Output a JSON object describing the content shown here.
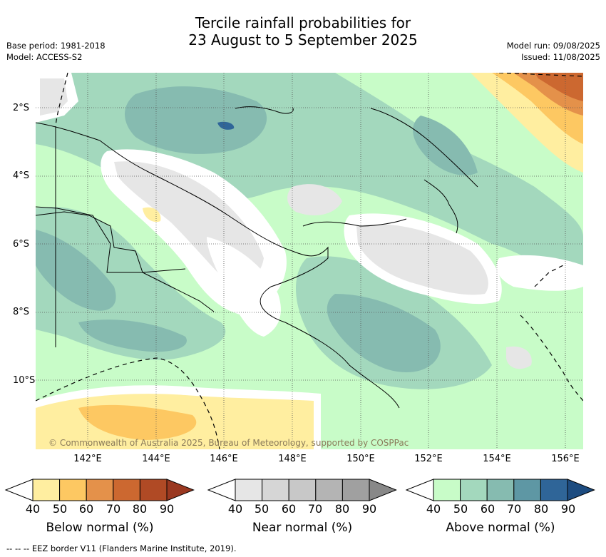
{
  "title_line1": "Tercile rainfall probabilities for",
  "title_line2": "23 August to 5 September 2025",
  "base_period": "Base period: 1981-2018",
  "model": "Model: ACCESS-S2",
  "model_run": "Model run: 09/08/2025",
  "issued": "Issued: 11/08/2025",
  "copyright": "© Commonwealth of Australia 2025, Bureau of Meteorology, supported by COSPPac",
  "footer": "--  --  -- EEZ border V11 (Flanders Marine Institute, 2019).",
  "lon_labels": [
    "142°E",
    "144°E",
    "146°E",
    "148°E",
    "150°E",
    "152°E",
    "154°E",
    "156°E"
  ],
  "lat_labels": [
    "2°S",
    "4°S",
    "6°S",
    "8°S",
    "10°S"
  ],
  "legends": [
    {
      "label": "Below normal (%)",
      "ticks": [
        "40",
        "50",
        "60",
        "70",
        "80",
        "90"
      ],
      "colors": [
        "#ffeea0",
        "#fdc862",
        "#e4914a",
        "#cc6830",
        "#b04a25",
        "#9a3820"
      ]
    },
    {
      "label": "Near normal (%)",
      "ticks": [
        "40",
        "50",
        "60",
        "70",
        "80",
        "90"
      ],
      "colors": [
        "#e6e6e6",
        "#d6d6d6",
        "#c8c8c8",
        "#b4b4b4",
        "#a0a0a0",
        "#888888"
      ]
    },
    {
      "label": "Above normal (%)",
      "ticks": [
        "40",
        "50",
        "60",
        "70",
        "80",
        "90"
      ],
      "colors": [
        "#c8fcc8",
        "#a3d8bd",
        "#86bbb0",
        "#5e97a4",
        "#2f6598",
        "#1d4c80"
      ]
    }
  ]
}
